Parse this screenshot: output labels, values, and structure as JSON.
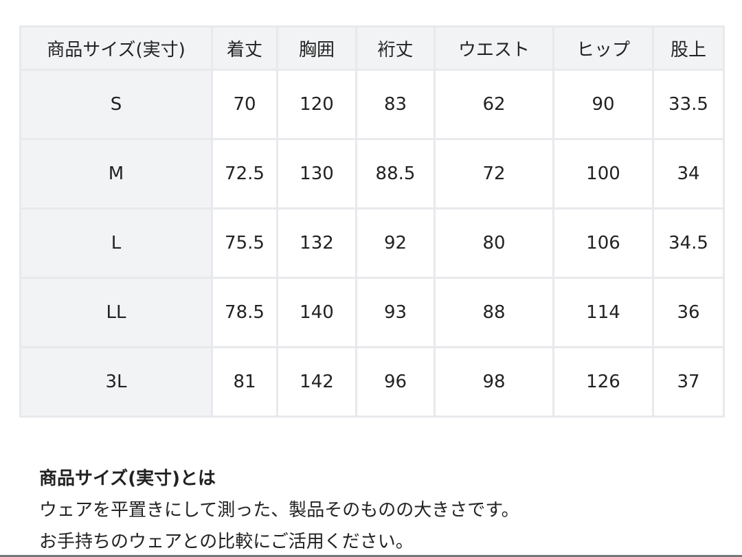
{
  "table": {
    "headers": [
      "商品サイズ(実寸)",
      "着丈",
      "胸囲",
      "裄丈",
      "ウエスト",
      "ヒップ",
      "股上"
    ],
    "rows": [
      [
        "S",
        "70",
        "120",
        "83",
        "62",
        "90",
        "33.5"
      ],
      [
        "M",
        "72.5",
        "130",
        "88.5",
        "72",
        "100",
        "34"
      ],
      [
        "L",
        "75.5",
        "132",
        "92",
        "80",
        "106",
        "34.5"
      ],
      [
        "LL",
        "78.5",
        "140",
        "93",
        "88",
        "114",
        "36"
      ],
      [
        "3L",
        "81",
        "142",
        "96",
        "98",
        "126",
        "37"
      ]
    ]
  },
  "note": {
    "title": "商品サイズ(実寸)とは",
    "line1": "ウェアを平置きにして測った、製品そのものの大きさです。",
    "line2": "お手持ちのウェアとの比較にご活用ください。"
  }
}
